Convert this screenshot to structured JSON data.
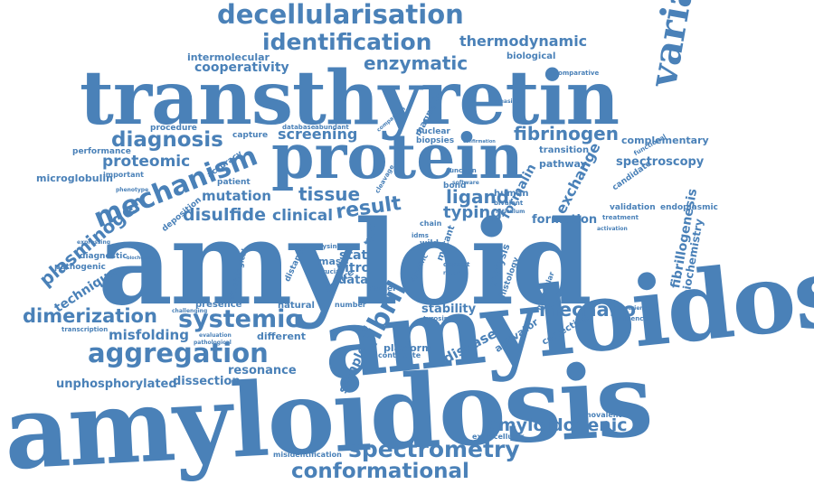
{
  "words": {
    "amyloidosis_big": "amyloidosis",
    "amyloidosis_right": "amyloidosis",
    "amyloid": "amyloid",
    "transthyretin": "transthyretin",
    "protein": "protein",
    "variant": "variant",
    "decellularisation": "decellularisation",
    "identification": "identification",
    "thermodynamic": "thermodynamic",
    "enzymatic": "enzymatic",
    "intermolecular": "intermolecular",
    "biological": "biological",
    "cooperativity": "cooperativity",
    "comparative": "comparative",
    "mechanism": "mechanism",
    "diagnosis": "diagnosis",
    "fibrinogen": "fibrinogen",
    "proteomic": "proteomic",
    "plasminogen": "plasminogen",
    "tissue": "tissue",
    "result": "result",
    "screening": "screening",
    "disulfide": "disulfide",
    "clinical": "clinical",
    "mutation": "mutation",
    "dimerization": "dimerization",
    "systemic": "systemic",
    "aggregation": "aggregation",
    "misfolding": "misfolding",
    "resonance": "resonance",
    "unphosphorylated": "unphosphorylated",
    "dissection": "dissection",
    "spectrometry": "spectrometry",
    "conformational": "conformational",
    "amyloidogenic": "amyloidogenic",
    "mechano": "mechano",
    "fibril": "fibril",
    "ligand": "ligand",
    "typing": "typing",
    "formation": "formation",
    "formalin": "formalin",
    "exchange": "exchange",
    "spectroscopy": "spectroscopy",
    "complementary": "complementary",
    "fibrillogenesis": "fibrillogenesis",
    "biochemistry": "biochemistry",
    "microglobulin": "microglobulin",
    "technique": "technique",
    "disease": "disease",
    "stability": "stability",
    "sample": "sample",
    "platform": "platform",
    "activator": "activator",
    "stat": "stat",
    "vitro": "vitro",
    "data": "data",
    "mas": "mas",
    "bond": "bond",
    "human": "human",
    "mutant": "mutant",
    "analysis": "analysis",
    "histology": "histology",
    "transition": "transition",
    "pathway": "pathway",
    "candidate": "candidate",
    "validation": "validation",
    "treatment": "treatment",
    "endoplasmic": "endoplasmic",
    "magnetic": "magnetic",
    "nuclear": "nuclear",
    "biopsies": "biopsies",
    "procedure": "procedure",
    "performance": "performance",
    "capture": "capture",
    "database": "database",
    "abundant": "abundant",
    "important": "important",
    "accuracy": "accuracy",
    "patient": "patient",
    "deposition": "deposition",
    "phenotype": "phenotype",
    "expressing": "expressing",
    "diagnostic": "diagnostic",
    "pathogenic": "pathogenic",
    "physiological": "physiological",
    "distance": "distance",
    "presence": "presence",
    "natural": "natural",
    "number": "number",
    "different": "different",
    "evaluation": "evaluation",
    "pathological": "pathological",
    "transcription": "transcription",
    "challenging": "challenging",
    "crucial": "crucial",
    "centre": "centre",
    "model": "model",
    "specific": "specific",
    "contribute": "contribute",
    "misidentification": "misidentification",
    "extracellular": "extracellular",
    "monovalent": "monovalent",
    "correction": "correction",
    "influence": "influence",
    "experience": "experience",
    "activation": "activation",
    "lysine": "lysine",
    "idms": "idms",
    "type": "type",
    "chain": "chain",
    "software": "software",
    "bivalent": "bivalent",
    "function": "function",
    "increasing": "increasing",
    "functional": "functional",
    "cleavage": "cleavage",
    "reticulum": "reticulum",
    "wild": "wild",
    "deposit": "deposit",
    "tyrosine": "tyrosine",
    "report": "report",
    "confirmation": "confirmation",
    "comparison": "comparison",
    "biochemical": "biochemical",
    "molecular": "molecular"
  },
  "colors": {
    "word": "#4a81b8",
    "tiny": "#6f9ac6",
    "background": "#ffffff"
  }
}
